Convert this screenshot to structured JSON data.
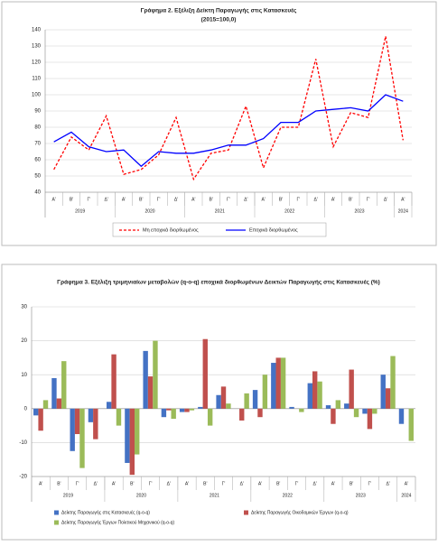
{
  "chart_data": [
    {
      "type": "line",
      "title": "Γράφημα 2. Εξέλιξη  Δείκτη  Παραγωγής  στις Κατασκευές",
      "subtitle": "(2015=100,0)",
      "categories": [
        "Α'",
        "Β'",
        "Γ'",
        "Δ'",
        "Α'",
        "Β'",
        "Γ'",
        "Δ'",
        "Α'",
        "Β'",
        "Γ'",
        "Δ'",
        "Α'",
        "Β'",
        "Γ'",
        "Δ'",
        "Α'",
        "Β'",
        "Γ'",
        "Δ'",
        "Α'"
      ],
      "x_groups": [
        {
          "label": "2019",
          "count": 4
        },
        {
          "label": "2020",
          "count": 4
        },
        {
          "label": "2021",
          "count": 4
        },
        {
          "label": "2022",
          "count": 4
        },
        {
          "label": "2023",
          "count": 4
        },
        {
          "label": "2024",
          "count": 1
        }
      ],
      "series": [
        {
          "name": "Μη εποχικά διορθωμένος",
          "color": "#ff0000",
          "dashed": true,
          "values": [
            54,
            74,
            66,
            87,
            51,
            54,
            63,
            86,
            48,
            64,
            66,
            93,
            55,
            80,
            80,
            122,
            68,
            89,
            86,
            136,
            72
          ]
        },
        {
          "name": "Εποχικά διορθωμένος",
          "color": "#0000ff",
          "dashed": false,
          "values": [
            71,
            77,
            68,
            65,
            66,
            56,
            65,
            64,
            64,
            66,
            69,
            69,
            73,
            83,
            83,
            90,
            91,
            92,
            90,
            100,
            96
          ]
        }
      ],
      "ylim": [
        40,
        140
      ],
      "yticks": [
        40,
        50,
        60,
        70,
        80,
        90,
        100,
        110,
        120,
        130,
        140
      ],
      "grid": true
    },
    {
      "type": "bar",
      "title": "Γράφημα 3. Εξέλιξη τριμηνιαίων μεταβολών (q-o-q) εποχικά διορθωμένων Δεικτών Παραγωγής στις Κατασκευές (%)",
      "categories": [
        "Α'",
        "Β'",
        "Γ'",
        "Δ'",
        "Α'",
        "Β'",
        "Γ'",
        "Δ'",
        "Α'",
        "Β'",
        "Γ'",
        "Δ'",
        "Α'",
        "Β'",
        "Γ'",
        "Δ'",
        "Α'",
        "Β'",
        "Γ'",
        "Δ'",
        "Α'"
      ],
      "x_groups": [
        {
          "label": "2019",
          "count": 4
        },
        {
          "label": "2020",
          "count": 4
        },
        {
          "label": "2021",
          "count": 4
        },
        {
          "label": "2022",
          "count": 4
        },
        {
          "label": "2023",
          "count": 4
        },
        {
          "label": "2024",
          "count": 1
        }
      ],
      "series": [
        {
          "name": "Δείκτης Παραγωγής στις Κατασκευές (q-o-q)",
          "color": "#4472c4",
          "values": [
            -2,
            9,
            -12.5,
            -4,
            2,
            -16,
            17,
            -2.5,
            -1,
            0.5,
            4,
            0,
            5.5,
            13.5,
            0.5,
            7.5,
            1,
            1.5,
            -1.5,
            10,
            -4.5
          ]
        },
        {
          "name": "Δείκτης Παραγωγής Οικοδομικών  Έργων (q-o-q)",
          "color": "#c0504d",
          "values": [
            -6.5,
            3,
            -7.5,
            -9,
            16,
            -19.5,
            9.5,
            -0.5,
            -1,
            20.5,
            6.5,
            -3.5,
            -2.5,
            15,
            0,
            11,
            -4.5,
            11.5,
            -6,
            6,
            0
          ]
        },
        {
          "name": "Δείκτης Παραγωγής Έργων Πολιτικού Μηχανικού (q-o-q)",
          "color": "#9bbb59",
          "values": [
            2.5,
            14,
            -17.5,
            0,
            -5,
            -13.5,
            20,
            -3,
            -0.5,
            -5,
            1.5,
            4.5,
            10,
            15,
            -1,
            8,
            2.5,
            -2.5,
            -1.5,
            15.5,
            -9.5
          ]
        }
      ],
      "ylim": [
        -20,
        30
      ],
      "yticks": [
        -20,
        -10,
        0,
        10,
        20,
        30
      ],
      "grid": true
    }
  ]
}
